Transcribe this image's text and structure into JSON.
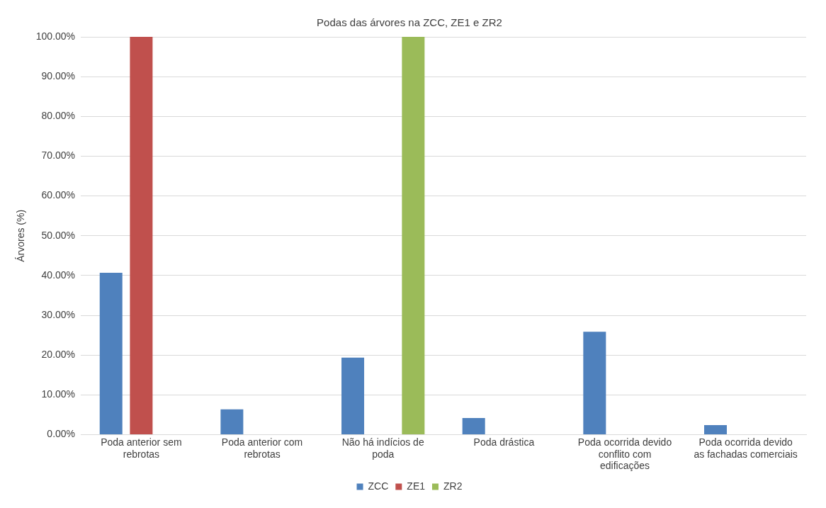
{
  "chart_data": {
    "type": "bar",
    "title": "Podas das árvores na ZCC, ZE1 e ZR2",
    "ylabel": "Árvores (%)",
    "categories": [
      "Poda anterior sem rebrotas",
      "Poda anterior com rebrotas",
      "Não há indícios de poda",
      "Poda drástica",
      "Poda ocorrida devido conflito com edificações",
      "Poda ocorrida devido as fachadas comerciais"
    ],
    "series": [
      {
        "name": "ZCC",
        "color": "#4f81bd",
        "values": [
          40.7,
          6.4,
          19.4,
          4.2,
          25.9,
          2.4
        ]
      },
      {
        "name": "ZE1",
        "color": "#c0504d",
        "values": [
          100,
          null,
          null,
          null,
          null,
          null
        ]
      },
      {
        "name": "ZR2",
        "color": "#9bbb59",
        "values": [
          null,
          null,
          100,
          null,
          null,
          null
        ]
      }
    ],
    "ylim": [
      0,
      100
    ],
    "yticks": [
      {
        "value": 0,
        "label": "0.00%"
      },
      {
        "value": 10,
        "label": "10.00%"
      },
      {
        "value": 20,
        "label": "20.00%"
      },
      {
        "value": 30,
        "label": "30.00%"
      },
      {
        "value": 40,
        "label": "40.00%"
      },
      {
        "value": 50,
        "label": "50.00%"
      },
      {
        "value": 60,
        "label": "60.00%"
      },
      {
        "value": 70,
        "label": "70.00%"
      },
      {
        "value": 80,
        "label": "80.00%"
      },
      {
        "value": 90,
        "label": "90.00%"
      },
      {
        "value": 100,
        "label": "100.00%"
      }
    ],
    "grid": "y",
    "legend": "bottom"
  }
}
